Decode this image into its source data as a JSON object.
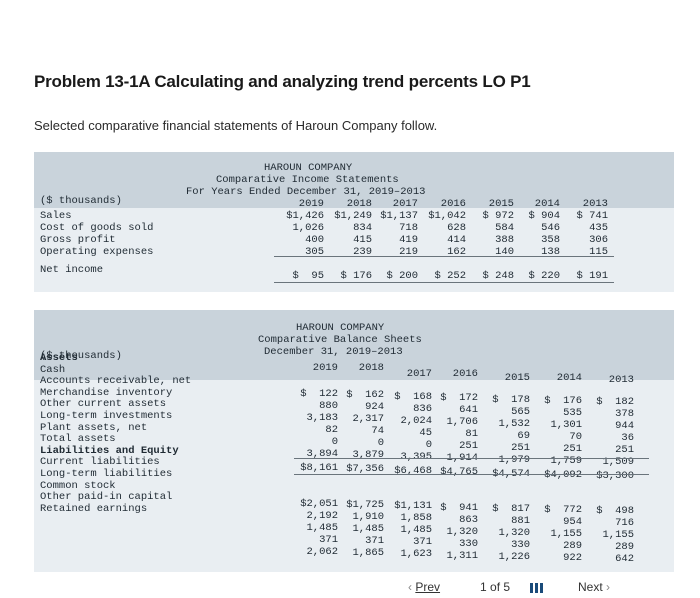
{
  "problem_title": "Problem 13-1A Calculating and analyzing trend percents LO P1",
  "intro": "Selected comparative financial statements of Haroun Company follow.",
  "income": {
    "company": "HAROUN COMPANY",
    "name": "Comparative Income Statements",
    "period": "For Years Ended December 31, 2019–2013",
    "unit": "($ thousands)",
    "years": [
      "2019",
      "2018",
      "2017",
      "2016",
      "2015",
      "2014",
      "2013"
    ],
    "rows": [
      {
        "label": "Sales",
        "values": [
          "$1,426",
          "$1,249",
          "$1,137",
          "$1,042",
          "$ 972",
          "$ 904",
          "$ 741"
        ]
      },
      {
        "label": "Cost of goods sold",
        "values": [
          "1,026",
          "834",
          "718",
          "628",
          "584",
          "546",
          "435"
        ]
      },
      {
        "label": "Gross profit",
        "values": [
          "400",
          "415",
          "419",
          "414",
          "388",
          "358",
          "306"
        ]
      },
      {
        "label": "Operating expenses",
        "values": [
          "305",
          "239",
          "219",
          "162",
          "140",
          "138",
          "115"
        ]
      },
      {
        "label": "Net income",
        "values": [
          "$  95",
          "$ 176",
          "$ 200",
          "$ 252",
          "$ 248",
          "$ 220",
          "$ 191"
        ]
      }
    ]
  },
  "balance": {
    "company": "HAROUN COMPANY",
    "name": "Comparative Balance Sheets",
    "period": "December 31, 2019–2013",
    "unit": "($ thousands)",
    "years": [
      "2019",
      "2018",
      "2017",
      "2016",
      "2015",
      "2014",
      "2013"
    ],
    "labels": [
      "Assets",
      "Cash",
      "Accounts receivable, net",
      "Merchandise inventory",
      "Other current assets",
      "Long-term investments",
      "Plant assets, net",
      "Total assets",
      "Liabilities and Equity",
      "Current liabilities",
      "Long-term liabilities",
      "Common stock",
      "Other paid-in capital",
      "Retained earnings"
    ],
    "asset_rows": [
      [
        "$  122",
        "$  162",
        "$  168",
        "$  172",
        "$  178",
        "$  176",
        "$  182"
      ],
      [
        "880",
        "924",
        "836",
        "641",
        "565",
        "535",
        "378"
      ],
      [
        "3,183",
        "2,317",
        "2,024",
        "1,706",
        "1,532",
        "1,301",
        "944"
      ],
      [
        "82",
        "74",
        "45",
        "81",
        "69",
        "70",
        "36"
      ],
      [
        "0",
        "0",
        "0",
        "251",
        "251",
        "251",
        "251"
      ],
      [
        "3,894",
        "3,879",
        "3,395",
        "1,914",
        "1,979",
        "1,759",
        "1,509"
      ],
      [
        "$8,161",
        "$7,356",
        "$6,468",
        "$4,765",
        "$4,574",
        "$4,092",
        "$3,300"
      ]
    ],
    "liab_rows": [
      [
        "$2,051",
        "$1,725",
        "$1,131",
        "$  941",
        "$  817",
        "$  772",
        "$  498"
      ],
      [
        "2,192",
        "1,910",
        "1,858",
        "863",
        "881",
        "954",
        "716"
      ],
      [
        "1,485",
        "1,485",
        "1,485",
        "1,320",
        "1,320",
        "1,155",
        "1,155"
      ],
      [
        "371",
        "371",
        "371",
        "330",
        "330",
        "289",
        "289"
      ],
      [
        "2,062",
        "1,865",
        "1,623",
        "1,311",
        "1,226",
        "922",
        "642"
      ]
    ]
  },
  "pager": {
    "prev": "Prev",
    "page": "1",
    "of": "of 5",
    "next": "Next"
  }
}
